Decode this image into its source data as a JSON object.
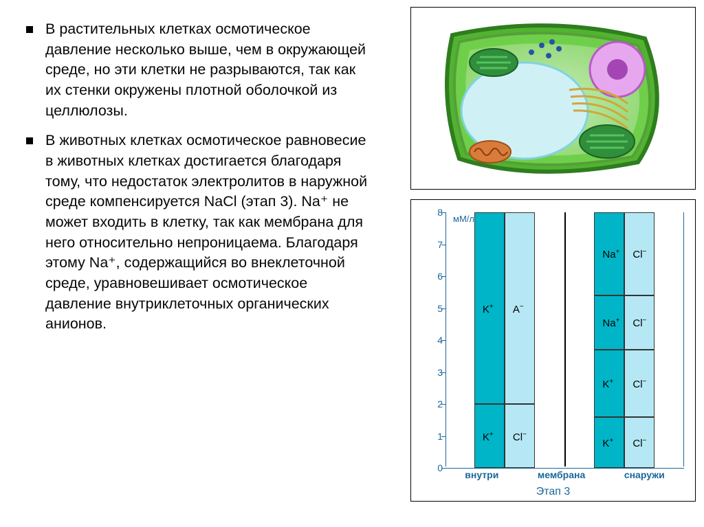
{
  "bullets": [
    "В растительных клетках осмотическое давление несколько выше, чем в окружающей среде, но эти клетки не разрываются, так как их стенки окружены плотной оболочкой из целлюлозы.",
    "В животных клетках осмотическое равновесие в животных клетках достигается благодаря тому, что недостаток электролитов в наружной среде компенсируется NaCl (этап 3). Na⁺ не может входить в клетку, так как мембрана для него относительно непроницаема. Благодаря этому Na⁺, содержащийся во внеклеточной среде, уравновешивает осмотическое давление внутриклеточных органических анионов."
  ],
  "chart": {
    "yunit": "мМ/л",
    "ymax": 8,
    "yticks": [
      0,
      1,
      2,
      3,
      4,
      5,
      6,
      7,
      8
    ],
    "xlabels": [
      "внутри",
      "мембрана",
      "снаружи"
    ],
    "stage": "Этап 3",
    "colors": {
      "K": "#00b5c7",
      "A": "#b5e8f4",
      "Na": "#00b5c7",
      "Cl": "#b5e8f4",
      "axis": "#1a6799"
    },
    "inside": {
      "left": {
        "segments": [
          {
            "from": 0,
            "to": 2,
            "label": "K⁺",
            "color": "#00b5c7"
          },
          {
            "from": 2,
            "to": 8,
            "label": "K⁺",
            "color": "#00b5c7"
          }
        ]
      },
      "right": {
        "segments": [
          {
            "from": 0,
            "to": 2,
            "label": "Cl⁻",
            "color": "#b5e8f4"
          },
          {
            "from": 2,
            "to": 8,
            "label": "A⁻",
            "color": "#b5e8f4"
          }
        ]
      }
    },
    "outside": {
      "left": {
        "segments": [
          {
            "from": 0,
            "to": 1.6,
            "label": "K⁺",
            "color": "#00b5c7"
          },
          {
            "from": 1.6,
            "to": 3.7,
            "label": "K⁺",
            "color": "#00b5c7"
          },
          {
            "from": 3.7,
            "to": 5.4,
            "label": "Na⁺",
            "color": "#00b5c7"
          },
          {
            "from": 5.4,
            "to": 8,
            "label": "Na⁺",
            "color": "#00b5c7"
          }
        ]
      },
      "right": {
        "segments": [
          {
            "from": 0,
            "to": 1.6,
            "label": "Cl⁻",
            "color": "#b5e8f4"
          },
          {
            "from": 1.6,
            "to": 3.7,
            "label": "Cl⁻",
            "color": "#b5e8f4"
          },
          {
            "from": 3.7,
            "to": 5.4,
            "label": "Cl⁻",
            "color": "#b5e8f4"
          },
          {
            "from": 5.4,
            "to": 8,
            "label": "Cl⁻",
            "color": "#b5e8f4"
          }
        ]
      }
    }
  }
}
